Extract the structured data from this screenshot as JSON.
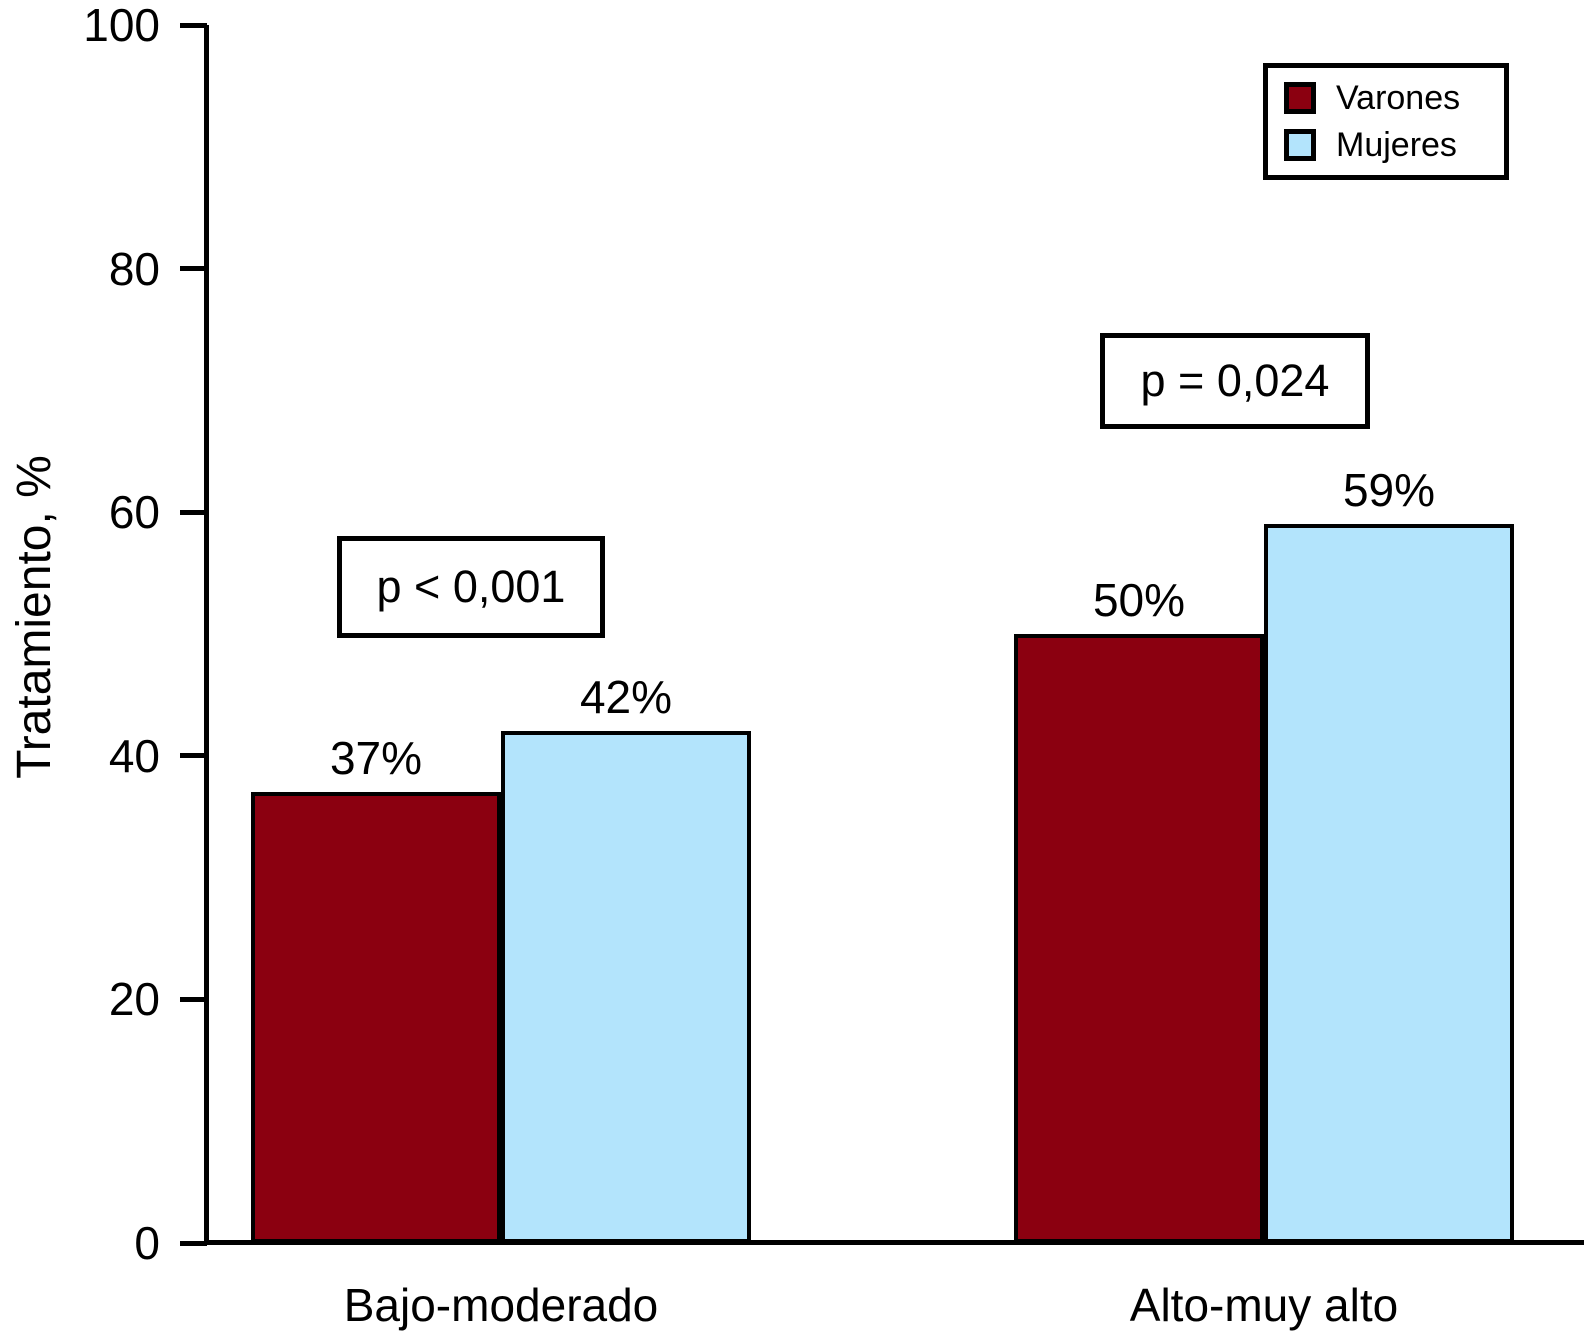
{
  "chart_data": {
    "type": "bar",
    "title": "",
    "ylabel": "Tratamiento, %",
    "xlabel": "",
    "categories": [
      "Bajo-moderado",
      "Alto-muy alto"
    ],
    "series": [
      {
        "name": "Varones",
        "color": "#8B0010",
        "values": [
          37,
          50
        ],
        "value_labels": [
          "37%",
          "50%"
        ]
      },
      {
        "name": "Mujeres",
        "color": "#B3E4FC",
        "values": [
          42,
          59
        ],
        "value_labels": [
          "42%",
          "59%"
        ]
      }
    ],
    "ylim": [
      0,
      100
    ],
    "yticks": [
      0,
      20,
      40,
      60,
      80,
      100
    ],
    "grid": false,
    "legend_position": "top-right",
    "annotations": [
      {
        "text": "p < 0,001",
        "group": "Bajo-moderado"
      },
      {
        "text": "p = 0,024",
        "group": "Alto-muy alto"
      }
    ]
  }
}
